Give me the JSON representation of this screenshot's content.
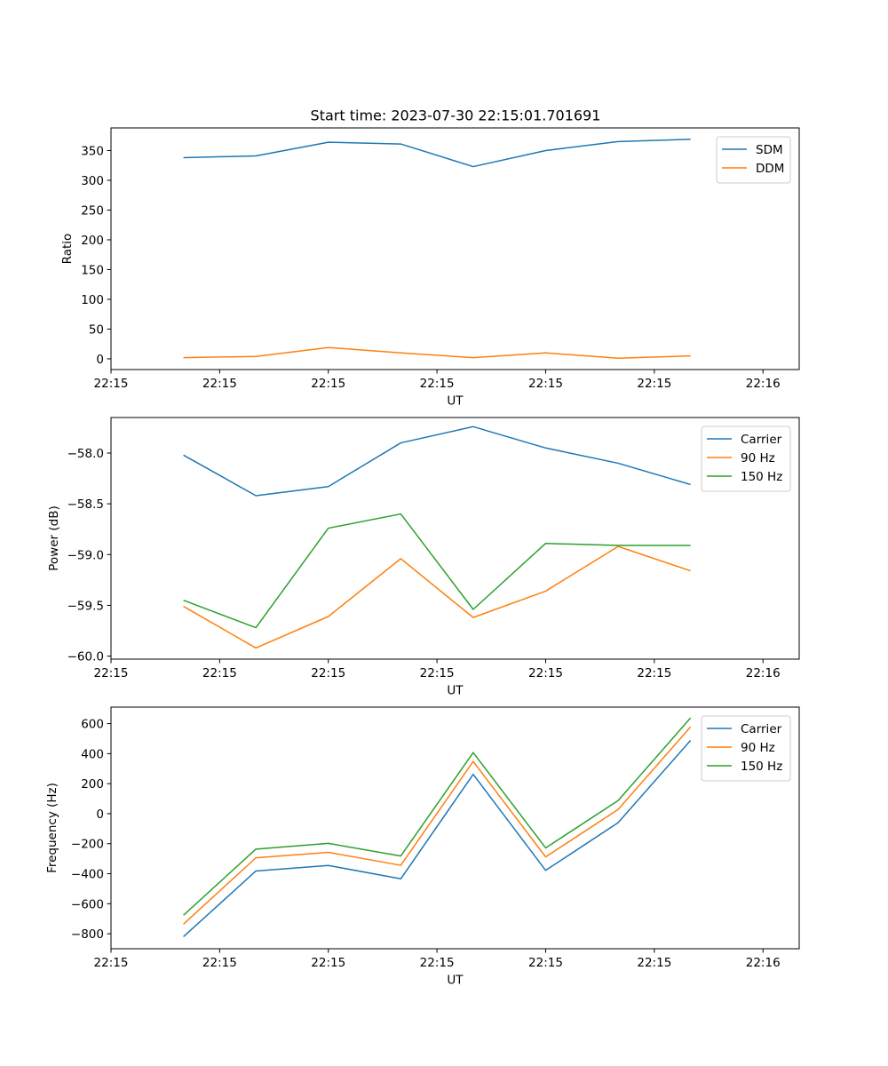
{
  "colors": {
    "series_blue": "#1f77b4",
    "series_orange": "#ff7f0e",
    "series_green": "#2ca02c"
  },
  "chart_data": [
    {
      "type": "line",
      "title": "Start time: 2023-07-30 22:15:01.701691",
      "xlabel": "UT",
      "ylabel": "Ratio",
      "x_index": [
        1,
        2,
        3,
        4,
        5,
        6,
        7,
        8
      ],
      "xlim": [
        0,
        9.5
      ],
      "xtick_positions": [
        0,
        1.5,
        3,
        4.5,
        6,
        7.5,
        9.0
      ],
      "xtick_labels": [
        "22:15",
        "22:15",
        "22:15",
        "22:15",
        "22:15",
        "22:15",
        "22:16"
      ],
      "ylim": [
        -18,
        388
      ],
      "yticks": [
        0,
        50,
        100,
        150,
        200,
        250,
        300,
        350
      ],
      "legend_position": "top-right",
      "series": [
        {
          "name": "SDM",
          "color": "#1f77b4",
          "values": [
            338,
            341,
            364,
            361,
            323,
            350,
            365,
            369
          ]
        },
        {
          "name": "DDM",
          "color": "#ff7f0e",
          "values": [
            2,
            4,
            19,
            10,
            2,
            10,
            1,
            5
          ]
        }
      ]
    },
    {
      "type": "line",
      "title": "",
      "xlabel": "UT",
      "ylabel": "Power (dB)",
      "x_index": [
        1,
        2,
        3,
        4,
        5,
        6,
        7,
        8
      ],
      "xlim": [
        0,
        9.5
      ],
      "xtick_positions": [
        0,
        1.5,
        3,
        4.5,
        6,
        7.5,
        9.0
      ],
      "xtick_labels": [
        "22:15",
        "22:15",
        "22:15",
        "22:15",
        "22:15",
        "22:15",
        "22:16"
      ],
      "ylim": [
        -60.03,
        -57.65
      ],
      "yticks": [
        -60.0,
        -59.5,
        -59.0,
        -58.5,
        -58.0
      ],
      "ytick_labels": [
        "−60.0",
        "−59.5",
        "−59.0",
        "−58.5",
        "−58.0"
      ],
      "legend_position": "top-right",
      "series": [
        {
          "name": "Carrier",
          "color": "#1f77b4",
          "values": [
            -58.02,
            -58.42,
            -58.33,
            -57.9,
            -57.74,
            -57.95,
            -58.1,
            -58.31
          ]
        },
        {
          "name": "90 Hz",
          "color": "#ff7f0e",
          "values": [
            -59.51,
            -59.92,
            -59.61,
            -59.04,
            -59.62,
            -59.36,
            -58.92,
            -59.16
          ]
        },
        {
          "name": "150 Hz",
          "color": "#2ca02c",
          "values": [
            -59.45,
            -59.72,
            -58.74,
            -58.6,
            -59.54,
            -58.89,
            -58.91,
            -58.91
          ]
        }
      ]
    },
    {
      "type": "line",
      "title": "",
      "xlabel": "UT",
      "ylabel": "Frequency (Hz)",
      "x_index": [
        1,
        2,
        3,
        4,
        5,
        6,
        7,
        8
      ],
      "xlim": [
        0,
        9.5
      ],
      "xtick_positions": [
        0,
        1.5,
        3,
        4.5,
        6,
        7.5,
        9.0
      ],
      "xtick_labels": [
        "22:15",
        "22:15",
        "22:15",
        "22:15",
        "22:15",
        "22:15",
        "22:16"
      ],
      "ylim": [
        -900,
        710
      ],
      "yticks": [
        -800,
        -600,
        -400,
        -200,
        0,
        200,
        400,
        600
      ],
      "ytick_labels": [
        "−800",
        "−600",
        "−400",
        "−200",
        "0",
        "200",
        "400",
        "600"
      ],
      "legend_position": "top-right",
      "series": [
        {
          "name": "Carrier",
          "color": "#1f77b4",
          "values": [
            -820,
            -382,
            -345,
            -434,
            262,
            -378,
            -60,
            488
          ]
        },
        {
          "name": "90 Hz",
          "color": "#ff7f0e",
          "values": [
            -736,
            -294,
            -258,
            -344,
            348,
            -288,
            28,
            578
          ]
        },
        {
          "name": "150 Hz",
          "color": "#2ca02c",
          "values": [
            -677,
            -236,
            -198,
            -282,
            407,
            -228,
            87,
            638
          ]
        }
      ]
    }
  ]
}
